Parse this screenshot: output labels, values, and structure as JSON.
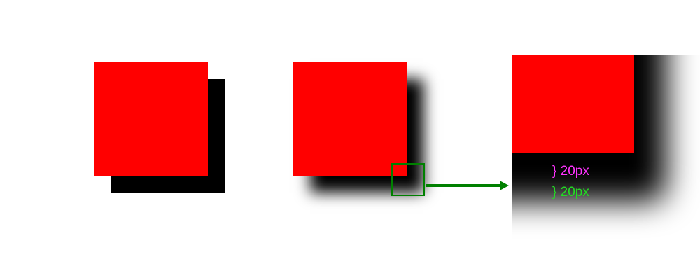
{
  "colors": {
    "box": "#ff0000",
    "shadow": "#000000",
    "highlight": "#008000",
    "measure_1": "#ff33ff",
    "measure_2": "#22dd22",
    "background": "#ffffff"
  },
  "annotations": {
    "measure_1": "} 20px",
    "measure_2": "} 20px"
  },
  "icons": {
    "pointer": "right-arrow-icon"
  }
}
